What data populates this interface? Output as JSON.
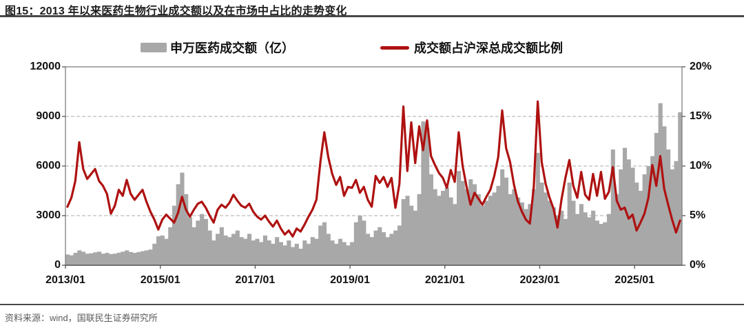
{
  "title": "图15：2013 年以来医药生物行业成交额以及在市场中占比的走势变化",
  "source": "资料来源：wind，国联民生证券研究所",
  "legend": {
    "bar_label": "申万医药成交额（亿）",
    "line_label": "成交额占沪深总成交额比例"
  },
  "colors": {
    "bar": "#A8A8A8",
    "line": "#AE1211",
    "grid": "#ABABAB",
    "plot_border": "#7F7F7F",
    "axis": "#555555"
  },
  "chart_data": {
    "type": "combo-bar-line",
    "x_start": "2013/01",
    "x_step": "month",
    "x_axis": {
      "tick_labels": [
        "2013/01",
        "2015/01",
        "2017/01",
        "2019/01",
        "2021/01",
        "2023/01",
        "2025/01"
      ],
      "tick_interval_years": 2,
      "range_years": [
        2013.0,
        2026.0
      ]
    },
    "left_axis": {
      "tick_labels": [
        "0",
        "3000",
        "6000",
        "9000",
        "12000"
      ],
      "tick_values": [
        0,
        3000,
        6000,
        9000,
        12000
      ],
      "range": [
        0,
        12000
      ],
      "grid": "dashed"
    },
    "right_axis": {
      "tick_labels": [
        "0%",
        "5%",
        "10%",
        "15%",
        "20%"
      ],
      "tick_values": [
        0,
        5,
        10,
        15,
        20
      ],
      "range": [
        0,
        20
      ]
    },
    "series": [
      {
        "name": "申万医药成交额（亿）",
        "type": "bar",
        "axis": "left",
        "values": [
          650,
          600,
          750,
          900,
          820,
          700,
          720,
          780,
          820,
          700,
          750,
          680,
          700,
          760,
          820,
          900,
          800,
          750,
          800,
          850,
          900,
          950,
          1300,
          1750,
          1800,
          1600,
          2300,
          3600,
          4900,
          5600,
          4300,
          2900,
          2300,
          2700,
          3100,
          2800,
          2100,
          1500,
          1900,
          2300,
          1800,
          1700,
          1900,
          2100,
          1700,
          1600,
          1900,
          1500,
          1600,
          1400,
          1800,
          1500,
          1300,
          1700,
          1400,
          1200,
          1500,
          1100,
          1300,
          1000,
          1500,
          1300,
          1700,
          1600,
          2400,
          2600,
          1900,
          1500,
          1300,
          1600,
          1400,
          1200,
          1400,
          2600,
          3000,
          2700,
          1900,
          1700,
          2100,
          2300,
          2000,
          1700,
          1900,
          2100,
          2400,
          4000,
          4200,
          3600,
          3300,
          4300,
          8700,
          8300,
          5500,
          4600,
          4200,
          4500,
          4700,
          4100,
          3700,
          5700,
          5100,
          4600,
          5200,
          4900,
          4300,
          3600,
          3900,
          4200,
          4400,
          4800,
          5800,
          5300,
          4300,
          4600,
          4100,
          3800,
          3400,
          3700,
          4600,
          6800,
          5000,
          4400,
          3900,
          3500,
          3000,
          3300,
          2800,
          5000,
          3900,
          3100,
          3700,
          3200,
          2900,
          3300,
          2700,
          2500,
          2600,
          3100,
          7000,
          4300,
          5800,
          7100,
          6400,
          5900,
          5000,
          4500,
          5500,
          6000,
          6600,
          8000,
          9800,
          8400,
          7000,
          5800,
          6300,
          9250
        ]
      },
      {
        "name": "成交额占沪深总成交额比例",
        "type": "line",
        "axis": "right",
        "unit": "%",
        "values": [
          5.9,
          6.8,
          8.5,
          12.4,
          9.7,
          8.7,
          9.2,
          9.7,
          8.5,
          8.0,
          7.2,
          5.2,
          6.0,
          7.6,
          7.0,
          8.6,
          7.2,
          6.6,
          7.1,
          7.6,
          6.4,
          5.4,
          4.6,
          3.6,
          4.6,
          5.1,
          4.7,
          4.3,
          5.3,
          6.9,
          5.6,
          4.9,
          5.6,
          6.2,
          6.4,
          5.8,
          5.0,
          4.3,
          5.6,
          6.1,
          5.8,
          6.3,
          7.1,
          6.5,
          6.0,
          5.8,
          6.2,
          5.4,
          4.9,
          4.6,
          5.0,
          4.4,
          3.9,
          4.5,
          3.7,
          3.1,
          3.5,
          2.9,
          3.7,
          3.4,
          4.1,
          4.9,
          5.6,
          6.6,
          10.4,
          13.4,
          10.9,
          9.2,
          8.1,
          8.9,
          7.0,
          7.9,
          7.8,
          8.6,
          7.3,
          7.9,
          6.6,
          5.9,
          9.0,
          8.3,
          8.9,
          7.9,
          8.8,
          5.8,
          8.2,
          16.0,
          9.5,
          14.4,
          10.3,
          14.0,
          11.6,
          14.6,
          11.0,
          10.1,
          9.3,
          8.8,
          7.8,
          9.6,
          8.4,
          13.4,
          10.0,
          7.9,
          6.1,
          7.3,
          6.7,
          6.1,
          6.9,
          7.6,
          9.0,
          10.9,
          15.6,
          11.8,
          10.4,
          8.1,
          6.4,
          5.4,
          4.6,
          4.2,
          7.9,
          16.5,
          10.4,
          8.2,
          6.8,
          5.7,
          3.8,
          6.6,
          8.8,
          10.6,
          8.0,
          6.8,
          9.4,
          7.1,
          6.6,
          9.2,
          7.0,
          9.4,
          6.7,
          7.4,
          9.9,
          6.5,
          5.6,
          5.8,
          4.7,
          5.1,
          3.5,
          4.3,
          5.2,
          6.8,
          10.1,
          8.0,
          11.0,
          7.7,
          6.1,
          4.6,
          3.3,
          4.5
        ]
      }
    ]
  }
}
